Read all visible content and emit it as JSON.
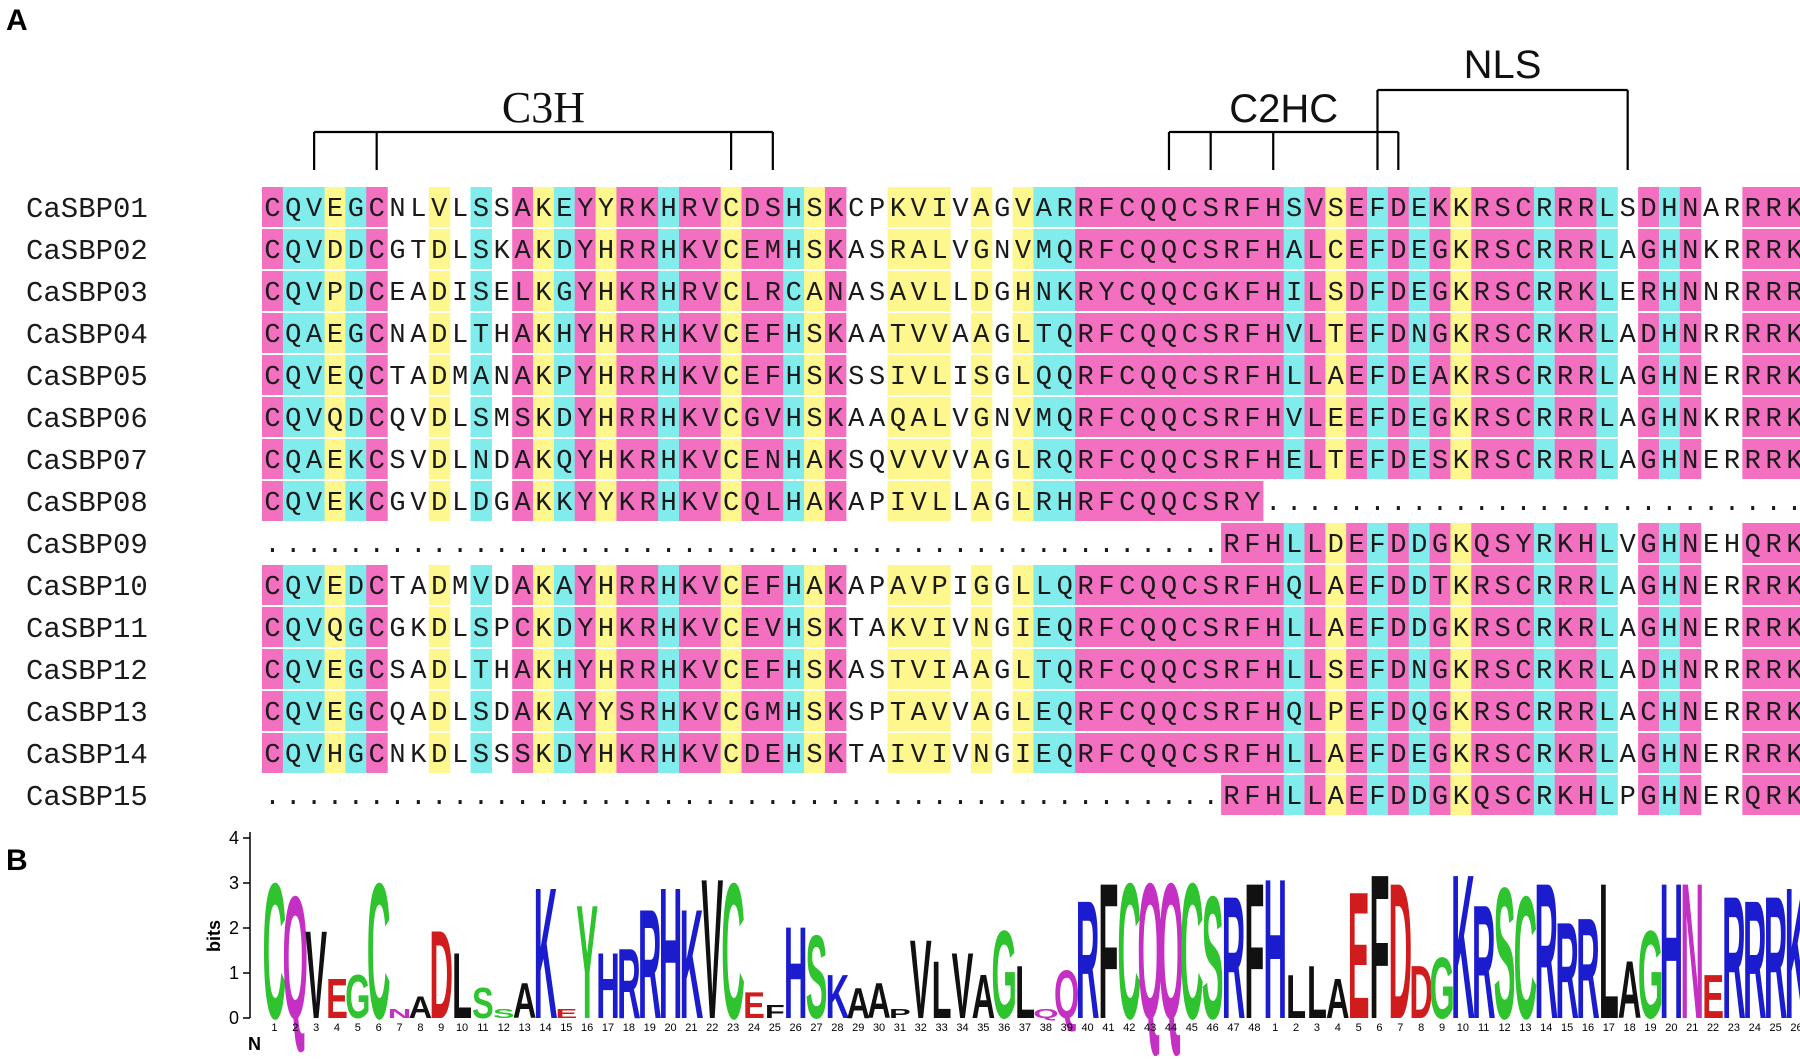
{
  "panels": {
    "a": "A",
    "b": "B"
  },
  "domains": [
    {
      "label": "C3H",
      "prongs": [
        2,
        5,
        22,
        24
      ],
      "style": "serif"
    },
    {
      "label": "C2HC",
      "prongs": [
        43,
        45,
        48,
        54
      ],
      "style": "sans"
    },
    {
      "label": "NLS",
      "prongs": [
        53,
        65
      ],
      "style": "sans"
    }
  ],
  "alignment": {
    "sequences": [
      {
        "name": "CaSBP01",
        "seq": "CQVEGCNLVLSSAKEYYRKHRVCDSHSKCPKVIVAGVARRFCQQCSRFHSVSEFDEKKRSCRRRLSDHNARRRK"
      },
      {
        "name": "CaSBP02",
        "seq": "CQVDDCGTDLSKAKDYHRRHKVCEMHSKASRALVGNVMQRFCQQCSRFHALCEFDEGKRSCRRRLAGHNKRRRK"
      },
      {
        "name": "CaSBP03",
        "seq": "CQVPDCEADISELKGYHKRHRVCLRCANASAVLLDGHNKRYCQQCGKFHILSDFDEGKRSCRRKLERHNNRRRR"
      },
      {
        "name": "CaSBP04",
        "seq": "CQAEGCNADLTHAKHYHRRHKVCEFHSKAATVVAAGLTQRFCQQCSRFHVLTEFDNGKRSCRKRLADHNRRRRK"
      },
      {
        "name": "CaSBP05",
        "seq": "CQVEQCTADMANAKPYHRRHKVCEFHSKSSIVLISGLQQRFCQQCSRFHLLAEFDEAKRSCRRRLAGHNERRRK"
      },
      {
        "name": "CaSBP06",
        "seq": "CQVQDCQVDLSMSKDYHRRHKVCGVHSKAAQALVGNVMQRFCQQCSRFHVLEEFDEGKRSCRRRLAGHNKRRRK"
      },
      {
        "name": "CaSBP07",
        "seq": "CQAEKCSVDLNDAKQYHKRHKVCENHAKSQVVVVAGLRQRFCQQCSRFHELTEFDESKRSCRRRLAGHNERRRK"
      },
      {
        "name": "CaSBP08",
        "seq": "CQVEKCGVDLDGAKKYYKRHKVCQLHAKAPIVLLAGLRHRFCQQCSRY..........................."
      },
      {
        "name": "CaSBP09",
        "seq": "..............................................RFHLLDEFDDGKQSYRKHLVGHNEHQRK"
      },
      {
        "name": "CaSBP10",
        "seq": "CQVEDCTADMVDAKAYHRRHKVCEFHAKAPAVPIGGLLQRFCQQCSRFHQLAEFDDTKRSCRRRLAGHNERRRK"
      },
      {
        "name": "CaSBP11",
        "seq": "CQVQGCGKDLSPCKDYHKRHKVCEVHSKTAKVIVNGIEQRFCQQCSRFHLLAEFDDGKRSCRKRLAGHNERRRK"
      },
      {
        "name": "CaSBP12",
        "seq": "CQVEGCSADLTHAKHYHRRHKVCEFHSKASTVIAAGLTQRFCQQCSRFHLLSEFDNGKRSCRKRLADHNRRRRK"
      },
      {
        "name": "CaSBP13",
        "seq": "CQVEGCQADLSDAKAYYSRHKVCGMHSKSPTAVVAGLEQRFCQQCSRFHQLPEFDQGKRSCRRRLACHNERRRK"
      },
      {
        "name": "CaSBP14",
        "seq": "CQVHGCNKDLSSSKDYHKRHKVCDEHSKTAIVIVNGIEQRFCQQCSRFHLLAEFDEGKRSCRKRLAGHNERRRK"
      },
      {
        "name": "CaSBP15",
        "seq": "..............................................RFHLLAEFDDGKQSCRKHLPGHNERQRK"
      }
    ],
    "column_colors": "MCCYCMWWYWCWMYCMYMMCMMYMMCYMWWYYYWYWYCCMMMMMMMMMMCMYMCMCMYMMMCMMCWMCMWWMMM",
    "colors": {
      "M": "#f36fc0",
      "C": "#81ecec",
      "Y": "#fdf78e",
      "W": "#ffffff"
    }
  },
  "logo": {
    "ylabel": "bits",
    "yticks": [
      "0",
      "1",
      "2",
      "3",
      "4"
    ],
    "ymax": 4,
    "n_label": "N",
    "c_label": "C",
    "position_labels": [
      "1",
      "2",
      "3",
      "4",
      "5",
      "6",
      "7",
      "8",
      "9",
      "10",
      "11",
      "12",
      "13",
      "14",
      "15",
      "16",
      "17",
      "18",
      "19",
      "20",
      "21",
      "22",
      "23",
      "24",
      "25",
      "26",
      "27",
      "28",
      "29",
      "30",
      "31",
      "32",
      "33",
      "34",
      "35",
      "36",
      "37",
      "38",
      "39",
      "40",
      "41",
      "42",
      "43",
      "44",
      "45",
      "46",
      "47",
      "48",
      "1",
      "2",
      "3",
      "4",
      "5",
      "6",
      "7",
      "8",
      "9",
      "10",
      "11",
      "12",
      "13",
      "14",
      "15",
      "16",
      "17",
      "18",
      "19",
      "20",
      "21",
      "22",
      "23",
      "24",
      "25",
      "26"
    ],
    "columns": [
      {
        "l": "C",
        "h": 3.1
      },
      {
        "l": "Q",
        "h": 2.8
      },
      {
        "l": "V",
        "h": 2.0
      },
      {
        "l": "E",
        "h": 0.9
      },
      {
        "l": "G",
        "h": 1.0
      },
      {
        "l": "C",
        "h": 3.1
      },
      {
        "l": "N",
        "h": 0.2
      },
      {
        "l": "A",
        "h": 0.5
      },
      {
        "l": "D",
        "h": 2.0
      },
      {
        "l": "L",
        "h": 1.5
      },
      {
        "l": "S",
        "h": 0.7
      },
      {
        "l": "S",
        "h": 0.2
      },
      {
        "l": "A",
        "h": 0.8
      },
      {
        "l": "K",
        "h": 3.0
      },
      {
        "l": "E",
        "h": 0.2
      },
      {
        "l": "Y",
        "h": 2.6
      },
      {
        "l": "H",
        "h": 1.5
      },
      {
        "l": "R",
        "h": 1.6
      },
      {
        "l": "R",
        "h": 2.5
      },
      {
        "l": "H",
        "h": 3.0
      },
      {
        "l": "K",
        "h": 2.5
      },
      {
        "l": "V",
        "h": 3.2
      },
      {
        "l": "C",
        "h": 3.1
      },
      {
        "l": "E",
        "h": 0.6
      },
      {
        "l": "F",
        "h": 0.3
      },
      {
        "l": "H",
        "h": 2.1
      },
      {
        "l": "S",
        "h": 1.9
      },
      {
        "l": "K",
        "h": 1.0
      },
      {
        "l": "A",
        "h": 0.7
      },
      {
        "l": "A",
        "h": 0.8
      },
      {
        "l": "P",
        "h": 0.2
      },
      {
        "l": "V",
        "h": 1.8
      },
      {
        "l": "L",
        "h": 1.3
      },
      {
        "l": "V",
        "h": 1.5
      },
      {
        "l": "A",
        "h": 1.0
      },
      {
        "l": "G",
        "h": 2.0
      },
      {
        "l": "L",
        "h": 1.2
      },
      {
        "l": "Q",
        "h": 0.2
      },
      {
        "l": "Q",
        "h": 1.1
      },
      {
        "l": "R",
        "h": 2.7
      },
      {
        "l": "F",
        "h": 3.1
      },
      {
        "l": "C",
        "h": 3.1
      },
      {
        "l": "Q",
        "h": 3.1
      },
      {
        "l": "Q",
        "h": 3.1
      },
      {
        "l": "C",
        "h": 3.1
      },
      {
        "l": "S",
        "h": 2.8
      },
      {
        "l": "R",
        "h": 2.8
      },
      {
        "l": "F",
        "h": 3.1
      },
      {
        "l": "H",
        "h": 3.2
      },
      {
        "l": "L",
        "h": 1.0
      },
      {
        "l": "L",
        "h": 1.2
      },
      {
        "l": "A",
        "h": 0.9
      },
      {
        "l": "E",
        "h": 2.9
      },
      {
        "l": "F",
        "h": 3.3
      },
      {
        "l": "D",
        "h": 3.1
      },
      {
        "l": "D",
        "h": 1.2
      },
      {
        "l": "G",
        "h": 1.4
      },
      {
        "l": "K",
        "h": 3.3
      },
      {
        "l": "R",
        "h": 2.6
      },
      {
        "l": "S",
        "h": 3.0
      },
      {
        "l": "C",
        "h": 2.8
      },
      {
        "l": "R",
        "h": 3.1
      },
      {
        "l": "R",
        "h": 2.2
      },
      {
        "l": "R",
        "h": 2.3
      },
      {
        "l": "L",
        "h": 3.1
      },
      {
        "l": "A",
        "h": 1.3
      },
      {
        "l": "G",
        "h": 2.0
      },
      {
        "l": "H",
        "h": 3.1
      },
      {
        "l": "N",
        "h": 3.1
      },
      {
        "l": "E",
        "h": 1.0
      },
      {
        "l": "R",
        "h": 2.8
      },
      {
        "l": "R",
        "h": 2.7
      },
      {
        "l": "R",
        "h": 2.8
      },
      {
        "l": "K",
        "h": 3.0
      }
    ],
    "aa_colors": {
      "C": "#2fc42f",
      "G": "#2fc42f",
      "S": "#2fc42f",
      "T": "#2fc42f",
      "Y": "#2fc42f",
      "Q": "#c42fc4",
      "N": "#c42fc4",
      "K": "#1c1ccf",
      "R": "#1c1ccf",
      "H": "#1c1ccf",
      "D": "#d01c1c",
      "E": "#d01c1c",
      "A": "#111111",
      "V": "#111111",
      "L": "#111111",
      "I": "#111111",
      "P": "#111111",
      "F": "#111111",
      "M": "#111111",
      "W": "#111111"
    }
  }
}
